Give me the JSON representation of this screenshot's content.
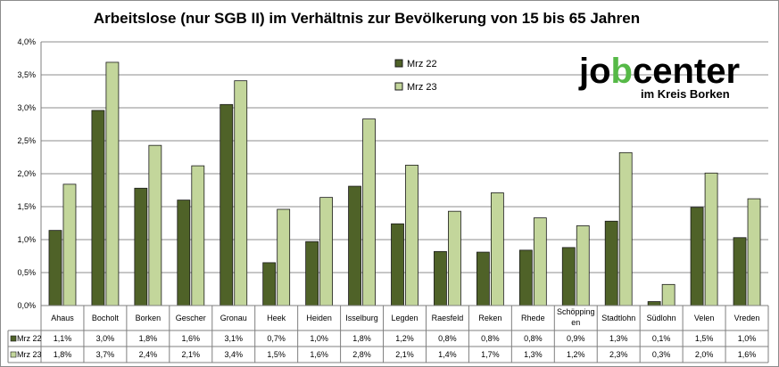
{
  "chart_data": {
    "type": "bar",
    "title": "Arbeitslose (nur SGB II) im Verhältnis zur Bevölkerung von 15 bis 65 Jahren",
    "categories": [
      "Ahaus",
      "Bocholt",
      "Borken",
      "Gescher",
      "Gronau",
      "Heek",
      "Heiden",
      "Isselburg",
      "Legden",
      "Raesfeld",
      "Reken",
      "Rhede",
      "Schöpping en",
      "Stadtlohn",
      "Südlohn",
      "Velen",
      "Vreden"
    ],
    "series": [
      {
        "name": "Mrz 22",
        "color": "#4f6228",
        "values": [
          1.14,
          2.96,
          1.78,
          1.6,
          3.05,
          0.65,
          0.97,
          1.81,
          1.24,
          0.82,
          0.81,
          0.84,
          0.88,
          1.28,
          0.06,
          1.49,
          1.03
        ],
        "labels": [
          "1,1%",
          "3,0%",
          "1,8%",
          "1,6%",
          "3,1%",
          "0,7%",
          "1,0%",
          "1,8%",
          "1,2%",
          "0,8%",
          "0,8%",
          "0,8%",
          "0,9%",
          "1,3%",
          "0,1%",
          "1,5%",
          "1,0%"
        ]
      },
      {
        "name": "Mrz 23",
        "color": "#c3d69b",
        "values": [
          1.84,
          3.69,
          2.43,
          2.12,
          3.41,
          1.46,
          1.64,
          2.83,
          2.13,
          1.43,
          1.71,
          1.33,
          1.21,
          2.32,
          0.32,
          2.01,
          1.62
        ],
        "labels": [
          "1,8%",
          "3,7%",
          "2,4%",
          "2,1%",
          "3,4%",
          "1,5%",
          "1,6%",
          "2,8%",
          "2,1%",
          "1,4%",
          "1,7%",
          "1,3%",
          "1,2%",
          "2,3%",
          "0,3%",
          "2,0%",
          "1,6%"
        ]
      }
    ],
    "ylim": [
      0,
      4.0
    ],
    "yticks": [
      "0,0%",
      "0,5%",
      "1,0%",
      "1,5%",
      "2,0%",
      "2,5%",
      "3,0%",
      "3,5%",
      "4,0%"
    ],
    "grid": true,
    "legend_position": "top-center",
    "data_table": true
  },
  "logo": {
    "part1": "jo",
    "part2": "b",
    "part3": "center",
    "sub": "im Kreis Borken",
    "accent": "#56b947"
  }
}
